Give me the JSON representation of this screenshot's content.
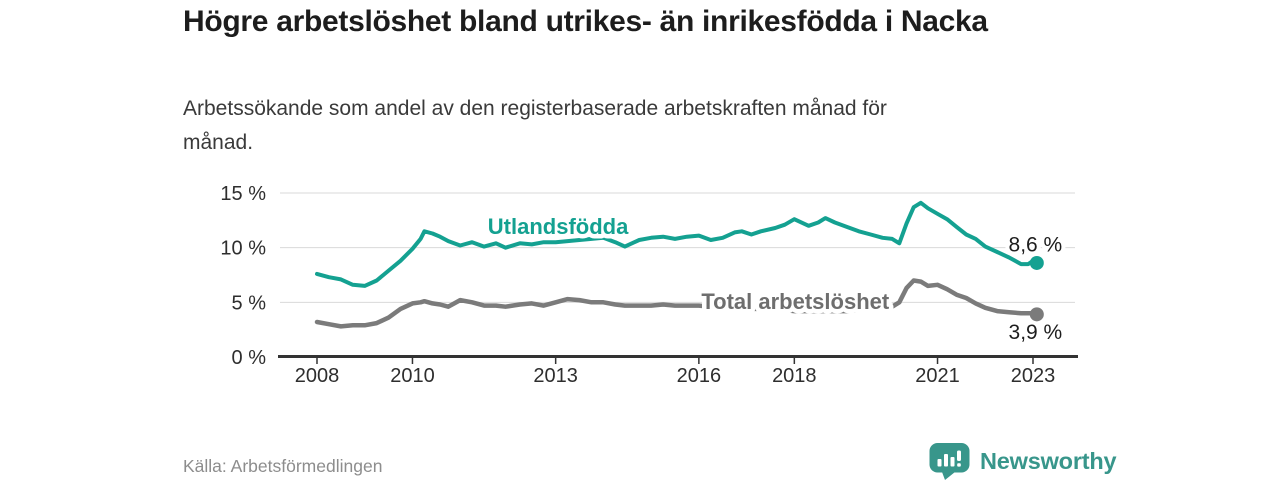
{
  "header": {
    "title": "Högre arbetslöshet bland utrikes- än inrikesfödda i Nacka",
    "subtitle": "Arbetssökande som andel av den registerbaserade arbetskraften månad för månad."
  },
  "footer": {
    "source": "Källa: Arbetsförmedlingen",
    "brand_name": "Newsworthy",
    "brand_icon": "newsworthy-speech-bubble-chart-icon"
  },
  "colors": {
    "accent_teal": "#14a191",
    "series_gray": "#7b7b7b",
    "label_gray": "#6e6e6e",
    "title_text": "#1d1d1d",
    "subtitle_text": "#3a3a3a",
    "axis_text": "#2e2e2e",
    "value_text": "#1d1d1d",
    "gridline": "#d9d9d9",
    "axis_line": "#333333",
    "source_text": "#8d8d8d",
    "brand_teal": "#38968b",
    "background": "#ffffff"
  },
  "chart_data": {
    "type": "line",
    "title": "Högre arbetslöshet bland utrikes- än inrikesfödda i Nacka",
    "subtitle": "Arbetssökande som andel av den registerbaserade arbetskraften månad för månad.",
    "xlabel": "",
    "ylabel": "",
    "unit": "%",
    "grid": "horizontal",
    "legend": "inline-labels",
    "xlim": [
      2007.225,
      2023.88
    ],
    "ylim": [
      0,
      15
    ],
    "xticks": [
      {
        "value": 2008,
        "label": "2008"
      },
      {
        "value": 2010,
        "label": "2010"
      },
      {
        "value": 2013,
        "label": "2013"
      },
      {
        "value": 2016,
        "label": "2016"
      },
      {
        "value": 2018,
        "label": "2018"
      },
      {
        "value": 2021,
        "label": "2021"
      },
      {
        "value": 2023,
        "label": "2023"
      }
    ],
    "yticks": [
      {
        "value": 0,
        "label": "0 %"
      },
      {
        "value": 5,
        "label": "5 %"
      },
      {
        "value": 10,
        "label": "10 %"
      },
      {
        "value": 15,
        "label": "15 %"
      }
    ],
    "x": [
      2008.0,
      2008.25,
      2008.5,
      2008.75,
      2009.0,
      2009.25,
      2009.5,
      2009.75,
      2010.0,
      2010.17,
      2010.25,
      2010.42,
      2010.58,
      2010.75,
      2011.0,
      2011.25,
      2011.5,
      2011.75,
      2011.95,
      2012.25,
      2012.5,
      2012.75,
      2013.0,
      2013.25,
      2013.5,
      2013.75,
      2014.0,
      2014.25,
      2014.45,
      2014.75,
      2015.0,
      2015.25,
      2015.5,
      2015.75,
      2016.0,
      2016.25,
      2016.5,
      2016.75,
      2016.9,
      2017.1,
      2017.3,
      2017.6,
      2017.8,
      2018.0,
      2018.3,
      2018.5,
      2018.65,
      2018.85,
      2019.1,
      2019.35,
      2019.6,
      2019.85,
      2020.05,
      2020.2,
      2020.35,
      2020.5,
      2020.65,
      2020.8,
      2021.0,
      2021.2,
      2021.4,
      2021.6,
      2021.8,
      2022.0,
      2022.25,
      2022.5,
      2022.75,
      2022.9,
      2023.0,
      2023.08
    ],
    "series": [
      {
        "id": "utlandsfodda",
        "name": "Utlandsfödda",
        "color": "#14a191",
        "label_color": "#14a191",
        "line_width": 4,
        "end_value_label": "8,6 %",
        "label_pos": {
          "x": 2013.05,
          "y": 12.0
        },
        "end_label_pos": {
          "x": 2023.05,
          "y": 10.3
        },
        "values": [
          7.6,
          7.3,
          7.1,
          6.6,
          6.5,
          7.0,
          7.9,
          8.8,
          9.9,
          10.8,
          11.5,
          11.3,
          11.0,
          10.6,
          10.2,
          10.5,
          10.1,
          10.4,
          10.0,
          10.4,
          10.3,
          10.5,
          10.5,
          10.6,
          10.7,
          10.8,
          10.9,
          10.5,
          10.1,
          10.7,
          10.9,
          11.0,
          10.8,
          11.0,
          11.1,
          10.7,
          10.9,
          11.4,
          11.5,
          11.2,
          11.5,
          11.8,
          12.1,
          12.6,
          12.0,
          12.3,
          12.7,
          12.3,
          11.9,
          11.5,
          11.2,
          10.9,
          10.8,
          10.4,
          12.2,
          13.7,
          14.1,
          13.6,
          13.1,
          12.6,
          11.9,
          11.2,
          10.8,
          10.1,
          9.6,
          9.1,
          8.5,
          8.5,
          8.8,
          8.6
        ]
      },
      {
        "id": "total-arbetsloshet",
        "name": "Total arbetslöshet",
        "color": "#7b7b7b",
        "label_color": "#6e6e6e",
        "line_width": 4.5,
        "end_value_label": "3,9 %",
        "label_pos": {
          "x": 2018.02,
          "y": 5.1
        },
        "end_label_pos": {
          "x": 2023.05,
          "y": 2.3
        },
        "values": [
          3.2,
          3.0,
          2.8,
          2.9,
          2.9,
          3.1,
          3.6,
          4.4,
          4.9,
          5.0,
          5.1,
          4.9,
          4.8,
          4.6,
          5.2,
          5.0,
          4.7,
          4.7,
          4.6,
          4.8,
          4.9,
          4.7,
          5.0,
          5.3,
          5.2,
          5.0,
          5.0,
          4.8,
          4.7,
          4.7,
          4.7,
          4.8,
          4.7,
          4.7,
          4.7,
          4.6,
          4.5,
          4.5,
          4.4,
          4.4,
          4.4,
          4.3,
          4.3,
          4.2,
          4.2,
          4.2,
          4.2,
          4.2,
          4.2,
          4.3,
          4.3,
          4.4,
          4.6,
          5.0,
          6.3,
          7.0,
          6.9,
          6.5,
          6.6,
          6.2,
          5.7,
          5.4,
          4.9,
          4.5,
          4.2,
          4.1,
          4.0,
          4.0,
          4.0,
          3.9
        ]
      }
    ]
  }
}
